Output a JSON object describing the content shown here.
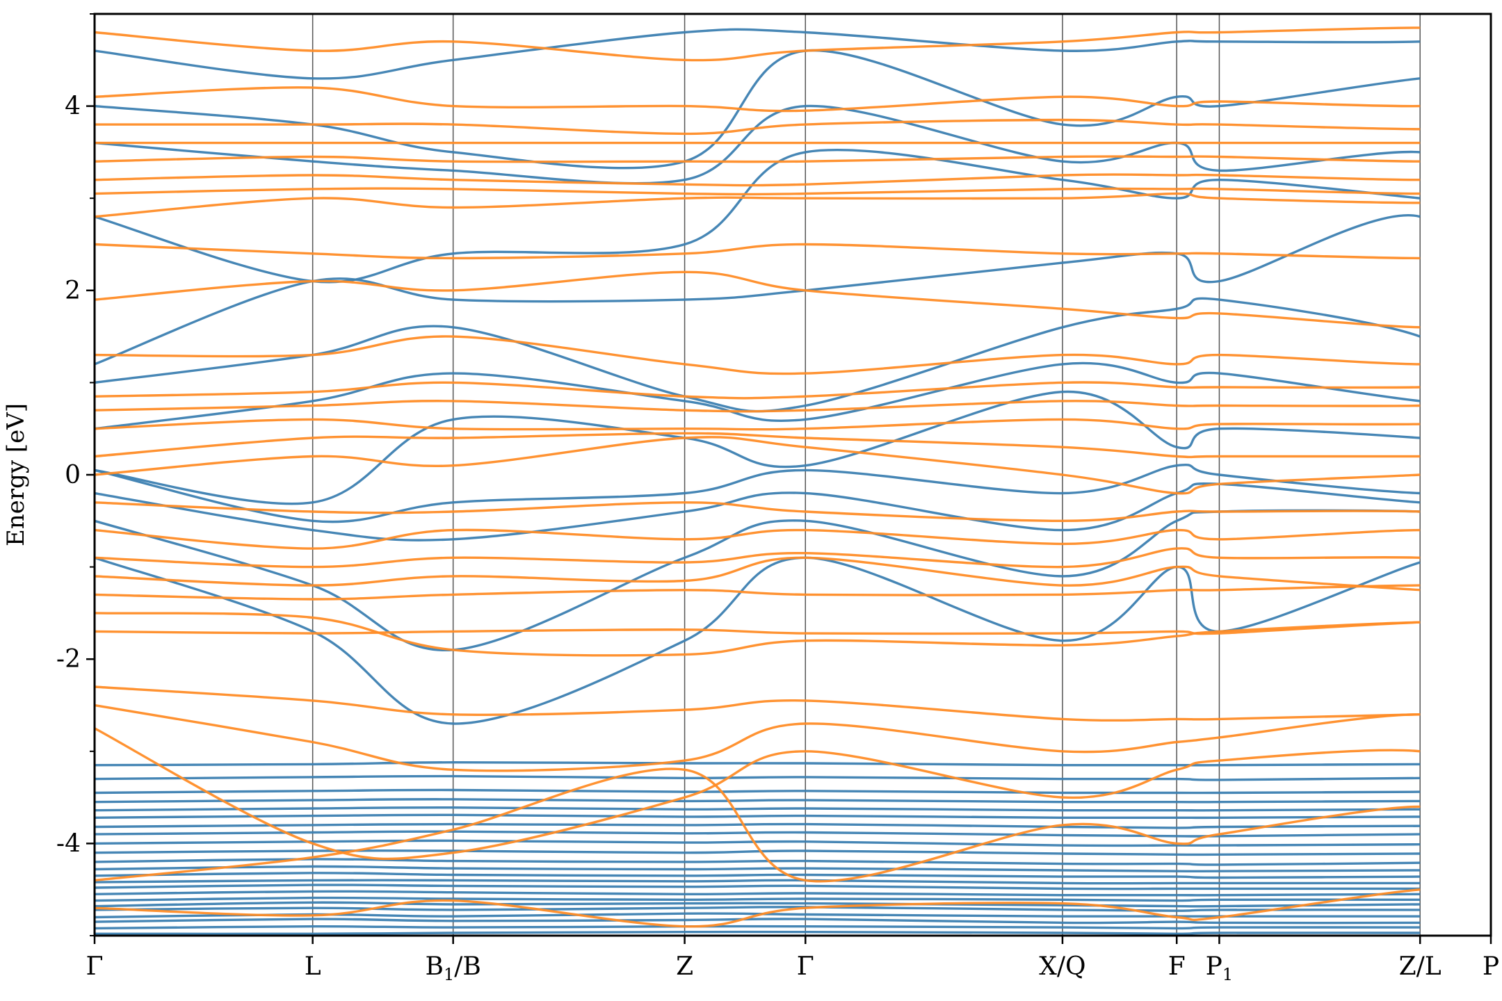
{
  "chart_data": {
    "type": "line",
    "title": "",
    "xlabel": "",
    "ylabel": "Energy [eV]",
    "ylim": [
      -5,
      5
    ],
    "yticks": [
      -4,
      -2,
      0,
      2,
      4
    ],
    "yticklabels": [
      "-4",
      "-2",
      "0",
      "2",
      "4"
    ],
    "grid": false,
    "legend": "none",
    "colors": {
      "series_a": "#3c7fb1",
      "series_b": "#ff8c26",
      "kpath_line": "#555555"
    },
    "kpoints": [
      {
        "label": "Γ",
        "sub": "",
        "x": 0.0
      },
      {
        "label": "L",
        "sub": "",
        "x": 1.562
      },
      {
        "label": "B",
        "sub": "1",
        "x": 2.568,
        "suffix": "/B"
      },
      {
        "label": "Z",
        "sub": "",
        "x": 4.226
      },
      {
        "label": "Γ",
        "sub": "",
        "x": 5.091
      },
      {
        "label": "X/Q",
        "sub": "",
        "x": 6.932
      },
      {
        "label": "F",
        "sub": "",
        "x": 7.75
      },
      {
        "label": "P",
        "sub": "1",
        "x": 8.055
      },
      {
        "label": "Z/L",
        "sub": "",
        "x": 9.493
      },
      {
        "label": "P",
        "sub": "",
        "x": 10.0
      }
    ],
    "series": [
      {
        "color_key": "series_a",
        "bands": [
          [
            -4.98,
            -4.98,
            -4.97,
            -4.96,
            -4.96,
            -4.97,
            -4.98,
            -4.97,
            -4.97,
            -4.97,
            -4.98
          ],
          [
            -4.92,
            -4.9,
            -4.91,
            -4.9,
            -4.9,
            -4.91,
            -4.92,
            -4.91,
            -4.91,
            -4.91,
            -4.91
          ],
          [
            -4.85,
            -4.82,
            -4.84,
            -4.83,
            -4.82,
            -4.86,
            -4.85,
            -4.86,
            -4.86,
            -4.84,
            -4.85
          ],
          [
            -4.8,
            -4.77,
            -4.79,
            -4.76,
            -4.77,
            -4.79,
            -4.79,
            -4.79,
            -4.79,
            -4.79,
            -4.79
          ],
          [
            -4.72,
            -4.7,
            -4.72,
            -4.7,
            -4.69,
            -4.72,
            -4.73,
            -4.72,
            -4.72,
            -4.72,
            -4.72
          ],
          [
            -4.68,
            -4.64,
            -4.66,
            -4.65,
            -4.65,
            -4.67,
            -4.68,
            -4.68,
            -4.66,
            -4.66,
            -4.67
          ],
          [
            -4.62,
            -4.59,
            -4.6,
            -4.61,
            -4.6,
            -4.61,
            -4.62,
            -4.61,
            -4.61,
            -4.61,
            -4.62
          ],
          [
            -4.55,
            -4.52,
            -4.53,
            -4.55,
            -4.54,
            -4.56,
            -4.56,
            -4.56,
            -4.55,
            -4.55,
            -4.55
          ],
          [
            -4.48,
            -4.45,
            -4.46,
            -4.47,
            -4.46,
            -4.49,
            -4.49,
            -4.49,
            -4.49,
            -4.48,
            -4.48
          ],
          [
            -4.42,
            -4.4,
            -4.4,
            -4.41,
            -4.4,
            -4.43,
            -4.43,
            -4.43,
            -4.43,
            -4.42,
            -4.42
          ],
          [
            -4.35,
            -4.32,
            -4.34,
            -4.35,
            -4.34,
            -4.36,
            -4.36,
            -4.37,
            -4.36,
            -4.36,
            -4.35
          ],
          [
            -4.28,
            -4.25,
            -4.27,
            -4.28,
            -4.27,
            -4.29,
            -4.3,
            -4.3,
            -4.29,
            -4.28,
            -4.29
          ],
          [
            -4.2,
            -4.17,
            -4.19,
            -4.2,
            -4.19,
            -4.22,
            -4.22,
            -4.23,
            -4.21,
            -4.2,
            -4.21
          ],
          [
            -4.1,
            -4.08,
            -4.08,
            -4.1,
            -4.08,
            -4.11,
            -4.12,
            -4.12,
            -4.11,
            -4.1,
            -4.1
          ],
          [
            -4.0,
            -3.98,
            -3.97,
            -3.99,
            -3.98,
            -4.02,
            -4.02,
            -4.02,
            -4.01,
            -4.0,
            -4.01
          ],
          [
            -3.9,
            -3.88,
            -3.87,
            -3.89,
            -3.88,
            -3.91,
            -3.92,
            -3.92,
            -3.9,
            -3.9,
            -3.91
          ],
          [
            -3.82,
            -3.8,
            -3.79,
            -3.8,
            -3.79,
            -3.82,
            -3.83,
            -3.82,
            -3.81,
            -3.81,
            -3.82
          ],
          [
            -3.72,
            -3.7,
            -3.69,
            -3.71,
            -3.7,
            -3.72,
            -3.72,
            -3.72,
            -3.71,
            -3.71,
            -3.71
          ],
          [
            -3.64,
            -3.62,
            -3.61,
            -3.63,
            -3.62,
            -3.64,
            -3.64,
            -3.64,
            -3.63,
            -3.63,
            -3.63
          ],
          [
            -3.55,
            -3.53,
            -3.52,
            -3.54,
            -3.53,
            -3.55,
            -3.55,
            -3.55,
            -3.54,
            -3.54,
            -3.55
          ],
          [
            -3.45,
            -3.43,
            -3.42,
            -3.44,
            -3.43,
            -3.45,
            -3.45,
            -3.45,
            -3.44,
            -3.44,
            -3.45
          ],
          [
            -3.3,
            -3.28,
            -3.27,
            -3.29,
            -3.28,
            -3.3,
            -3.3,
            -3.31,
            -3.29,
            -3.29,
            -3.3
          ],
          [
            -3.15,
            -3.14,
            -3.12,
            -3.13,
            -3.13,
            -3.15,
            -3.15,
            -3.15,
            -3.14,
            -3.14,
            -3.15
          ],
          [
            -0.9,
            -1.7,
            -2.7,
            -1.8,
            -0.9,
            -1.8,
            -1.0,
            -1.7,
            -0.95,
            -0.8,
            -0.9
          ],
          [
            -0.5,
            -1.2,
            -1.9,
            -0.9,
            -0.5,
            -1.1,
            -0.5,
            -0.4,
            -0.4,
            -0.5,
            -0.6
          ],
          [
            -0.2,
            -0.6,
            -0.7,
            -0.4,
            -0.2,
            -0.6,
            -0.2,
            -0.1,
            -0.3,
            -0.3,
            -0.2
          ],
          [
            0.05,
            -0.5,
            -0.3,
            -0.2,
            0.05,
            -0.2,
            0.1,
            0.0,
            -0.2,
            -0.1,
            0.0
          ],
          [
            0.05,
            -0.3,
            0.6,
            0.4,
            0.1,
            0.9,
            0.3,
            0.5,
            0.4,
            0.3,
            0.4
          ],
          [
            0.5,
            0.8,
            1.1,
            0.8,
            0.6,
            1.2,
            1.0,
            1.1,
            0.8,
            0.8,
            0.7
          ],
          [
            1.0,
            1.3,
            1.6,
            0.85,
            0.75,
            1.6,
            1.8,
            1.9,
            1.5,
            0.85,
            1.0
          ],
          [
            1.2,
            2.1,
            1.9,
            1.9,
            2.0,
            2.3,
            2.4,
            2.1,
            2.8,
            1.3,
            2.1
          ],
          [
            2.8,
            2.1,
            2.4,
            2.5,
            3.5,
            3.2,
            3.0,
            3.2,
            3.0,
            2.9,
            3.1
          ],
          [
            3.6,
            3.4,
            3.3,
            3.2,
            4.0,
            3.4,
            3.6,
            3.3,
            3.5,
            3.1,
            3.4
          ],
          [
            4.0,
            3.8,
            3.5,
            3.4,
            4.6,
            3.8,
            4.1,
            4.0,
            4.3,
            4.3,
            3.6
          ],
          [
            4.6,
            4.3,
            4.5,
            4.8,
            4.8,
            4.6,
            4.7,
            4.7,
            4.7,
            4.8,
            4.7
          ]
        ]
      },
      {
        "color_key": "series_b",
        "bands": [
          [
            -4.7,
            -4.78,
            -4.62,
            -4.9,
            -4.7,
            -4.65,
            -4.8,
            -4.8,
            -4.5,
            -4.55,
            -4.4
          ],
          [
            -4.4,
            -4.15,
            -3.85,
            -3.2,
            -4.4,
            -3.8,
            -4.0,
            -3.9,
            -3.6,
            -3.9,
            -3.7
          ],
          [
            -2.75,
            -4.0,
            -4.1,
            -3.5,
            -3.0,
            -3.5,
            -3.2,
            -3.1,
            -3.0,
            -3.4,
            -3.2
          ],
          [
            -2.5,
            -2.9,
            -3.2,
            -3.1,
            -2.7,
            -3.0,
            -2.9,
            -2.85,
            -2.6,
            -2.9,
            -2.8
          ],
          [
            -2.3,
            -2.45,
            -2.6,
            -2.55,
            -2.45,
            -2.65,
            -2.65,
            -2.65,
            -2.6,
            -2.6,
            -2.6
          ],
          [
            -1.7,
            -1.72,
            -1.7,
            -1.68,
            -1.72,
            -1.72,
            -1.7,
            -1.72,
            -1.6,
            -1.62,
            -1.6
          ],
          [
            -1.5,
            -1.55,
            -1.9,
            -1.95,
            -1.8,
            -1.85,
            -1.75,
            -1.7,
            -1.6,
            -1.65,
            -1.6
          ],
          [
            -1.3,
            -1.35,
            -1.3,
            -1.25,
            -1.3,
            -1.3,
            -1.25,
            -1.25,
            -1.2,
            -1.25,
            -1.2
          ],
          [
            -1.1,
            -1.2,
            -1.1,
            -1.15,
            -0.9,
            -1.2,
            -1.0,
            -1.1,
            -1.25,
            -1.3,
            -1.3
          ],
          [
            -0.9,
            -1.0,
            -0.9,
            -0.95,
            -0.85,
            -1.0,
            -0.8,
            -0.9,
            -0.9,
            -1.0,
            -1.1
          ],
          [
            -0.6,
            -0.8,
            -0.6,
            -0.7,
            -0.6,
            -0.75,
            -0.6,
            -0.7,
            -0.6,
            -0.7,
            -0.8
          ],
          [
            -0.3,
            -0.4,
            -0.4,
            -0.3,
            -0.4,
            -0.5,
            -0.4,
            -0.4,
            -0.4,
            -0.5,
            -0.6
          ],
          [
            0.0,
            0.2,
            0.1,
            0.4,
            0.3,
            0.0,
            -0.2,
            -0.1,
            0.0,
            0.05,
            0.1
          ],
          [
            0.2,
            0.4,
            0.4,
            0.45,
            0.4,
            0.3,
            0.2,
            0.2,
            0.2,
            0.2,
            0.3
          ],
          [
            0.5,
            0.6,
            0.5,
            0.5,
            0.5,
            0.6,
            0.5,
            0.55,
            0.55,
            0.6,
            0.6
          ],
          [
            0.7,
            0.75,
            0.8,
            0.7,
            0.7,
            0.8,
            0.75,
            0.75,
            0.75,
            0.8,
            0.8
          ],
          [
            0.85,
            0.9,
            1.0,
            0.85,
            0.85,
            1.0,
            0.95,
            0.95,
            0.95,
            1.0,
            1.0
          ],
          [
            1.3,
            1.3,
            1.5,
            1.2,
            1.1,
            1.3,
            1.2,
            1.3,
            1.2,
            1.3,
            1.3
          ],
          [
            1.9,
            2.1,
            2.0,
            2.2,
            2.0,
            1.8,
            1.7,
            1.75,
            1.6,
            1.7,
            1.6
          ],
          [
            2.5,
            2.4,
            2.35,
            2.4,
            2.5,
            2.4,
            2.4,
            2.4,
            2.35,
            2.4,
            2.4
          ],
          [
            2.8,
            3.0,
            2.9,
            3.0,
            3.0,
            3.0,
            3.05,
            3.0,
            2.95,
            3.0,
            3.0
          ],
          [
            3.05,
            3.1,
            3.1,
            3.05,
            3.05,
            3.1,
            3.1,
            3.1,
            3.05,
            3.1,
            3.1
          ],
          [
            3.2,
            3.25,
            3.2,
            3.15,
            3.15,
            3.25,
            3.25,
            3.25,
            3.2,
            3.25,
            3.25
          ],
          [
            3.4,
            3.45,
            3.4,
            3.4,
            3.4,
            3.45,
            3.45,
            3.45,
            3.4,
            3.45,
            3.45
          ],
          [
            3.6,
            3.6,
            3.6,
            3.6,
            3.6,
            3.6,
            3.6,
            3.6,
            3.6,
            3.6,
            3.6
          ],
          [
            3.8,
            3.8,
            3.8,
            3.7,
            3.8,
            3.85,
            3.8,
            3.8,
            3.75,
            3.8,
            3.8
          ],
          [
            4.1,
            4.2,
            4.0,
            4.0,
            3.95,
            4.1,
            4.0,
            4.05,
            4.0,
            4.1,
            4.0
          ],
          [
            4.8,
            4.6,
            4.7,
            4.5,
            4.6,
            4.7,
            4.8,
            4.8,
            4.85,
            4.8,
            4.9
          ]
        ]
      }
    ]
  }
}
